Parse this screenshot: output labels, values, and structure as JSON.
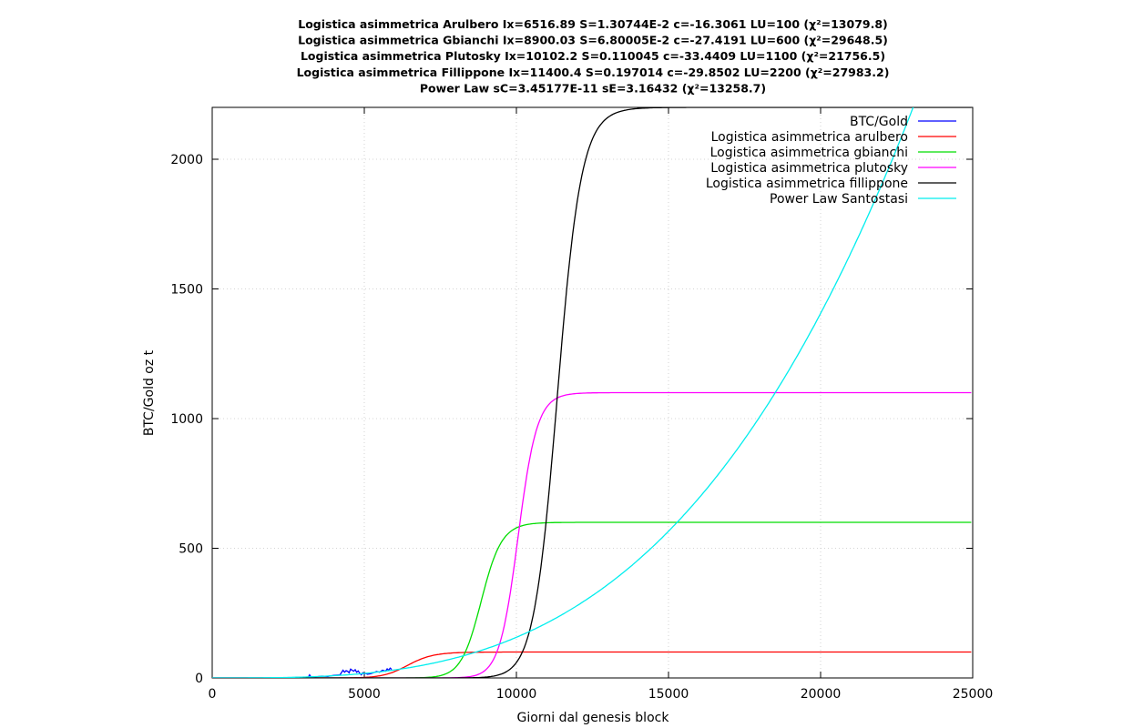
{
  "chart_data": {
    "type": "line",
    "title_lines": [
      "Logistica asimmetrica Arulbero Ix=6516.89 S=1.30744E-2 c=-16.3061 LU=100 (χ²=13079.8)",
      "Logistica asimmetrica Gbianchi Ix=8900.03 S=6.80005E-2 c=-27.4191 LU=600 (χ²=29648.5)",
      "Logistica asimmetrica Plutosky Ix=10102.2 S=0.110045 c=-33.4409 LU=1100 (χ²=21756.5)",
      "Logistica asimmetrica Fillippone Ix=11400.4 S=0.197014 c=-29.8502 LU=2200 (χ²=27983.2)",
      "Power Law sC=3.45177E-11 sE=3.16432 (χ²=13258.7)"
    ],
    "xlabel": "Giorni dal genesis block",
    "ylabel": "BTC/Gold oz t",
    "xlim": [
      0,
      25000
    ],
    "ylim": [
      0,
      2200
    ],
    "xticks": [
      0,
      5000,
      10000,
      15000,
      20000,
      25000
    ],
    "yticks": [
      0,
      500,
      1000,
      1500,
      2000
    ],
    "grid": true,
    "legend_position": "top-right",
    "series": [
      {
        "name": "BTC/Gold",
        "color": "#0000ff",
        "x": [
          0,
          2500,
          3000,
          3150,
          3200,
          3250,
          3400,
          3600,
          3800,
          4000,
          4200,
          4300,
          4350,
          4400,
          4450,
          4500,
          4550,
          4600,
          4650,
          4700,
          4750,
          4800,
          4850,
          4900,
          4950,
          5000,
          5050,
          5100,
          5200,
          5300,
          5400,
          5500,
          5600,
          5700,
          5750,
          5800,
          5850,
          5900
        ],
        "y": [
          0,
          0,
          0.5,
          1,
          12,
          3,
          4,
          7,
          6,
          10,
          12,
          30,
          22,
          28,
          26,
          20,
          34,
          30,
          26,
          32,
          22,
          27,
          18,
          12,
          20,
          15,
          18,
          14,
          16,
          20,
          25,
          22,
          30,
          26,
          35,
          30,
          38,
          33
        ]
      },
      {
        "name": "Logistica asimmetrica arulbero",
        "color": "#ff0000",
        "LU": 100,
        "Ix": 6516.89,
        "S": 0.0130744,
        "c": -16.3061
      },
      {
        "name": "Logistica asimmetrica gbianchi",
        "color": "#00dd00",
        "LU": 600,
        "Ix": 8900.03,
        "S": 0.0680005,
        "c": -27.4191
      },
      {
        "name": "Logistica asimmetrica plutosky",
        "color": "#ff00ff",
        "LU": 1100,
        "Ix": 10102.2,
        "S": 0.110045,
        "c": -33.4409
      },
      {
        "name": "Logistica asimmetrica fillippone",
        "color": "#000000",
        "LU": 2200,
        "Ix": 11400.4,
        "S": 0.197014,
        "c": -29.8502
      },
      {
        "name": "Power Law Santostasi",
        "color": "#00eeee",
        "sC": 3.45177e-11,
        "sE": 3.16432
      }
    ]
  }
}
